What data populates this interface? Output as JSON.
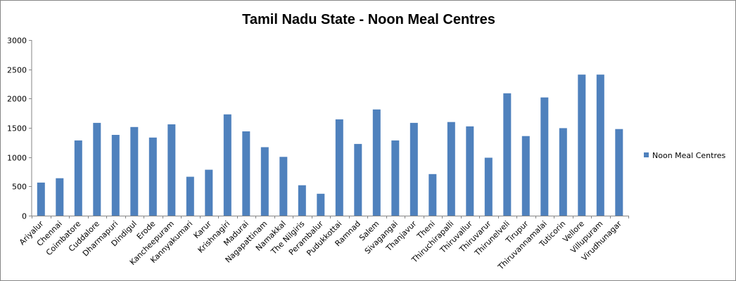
{
  "chart_data": {
    "type": "bar",
    "title": "Tamil Nadu State - Noon Meal Centres",
    "xlabel": "",
    "ylabel": "",
    "ylim": [
      0,
      3000
    ],
    "yticks": [
      0,
      500,
      1000,
      1500,
      2000,
      2500,
      3000
    ],
    "grid": false,
    "legend_position": "right",
    "bar_color": "#4F81BD",
    "categories": [
      "Ariyalur",
      "Chennai",
      "Coimbatore",
      "Cuddalore",
      "Dharmapuri",
      "Dindigul",
      "Erode",
      "Kancheepuram",
      "Kannyakumari",
      "Karur",
      "Krishnagiri",
      "Madurai",
      "Nagapattinam",
      "Namakkal",
      "The Nilgiris",
      "Perambalur",
      "Pudukkottai",
      "Ramnad",
      "Salem",
      "Sivagangai",
      "Thanjavur",
      "Theni",
      "Thiruchirapalli",
      "Thiruvallur",
      "Thiruvarur",
      "Thirunelveli",
      "Tirupur",
      "Thiruvannamalai",
      "Tuticorin",
      "Vellore",
      "Villupuram",
      "Virudhunagar"
    ],
    "series": [
      {
        "name": "Noon Meal Centres",
        "values": [
          565,
          640,
          1285,
          1585,
          1380,
          1515,
          1335,
          1560,
          665,
          785,
          1730,
          1440,
          1170,
          1005,
          520,
          375,
          1645,
          1225,
          1815,
          1285,
          1585,
          710,
          1600,
          1525,
          990,
          2090,
          1360,
          2020,
          1495,
          2410,
          2410,
          1480
        ]
      }
    ]
  }
}
